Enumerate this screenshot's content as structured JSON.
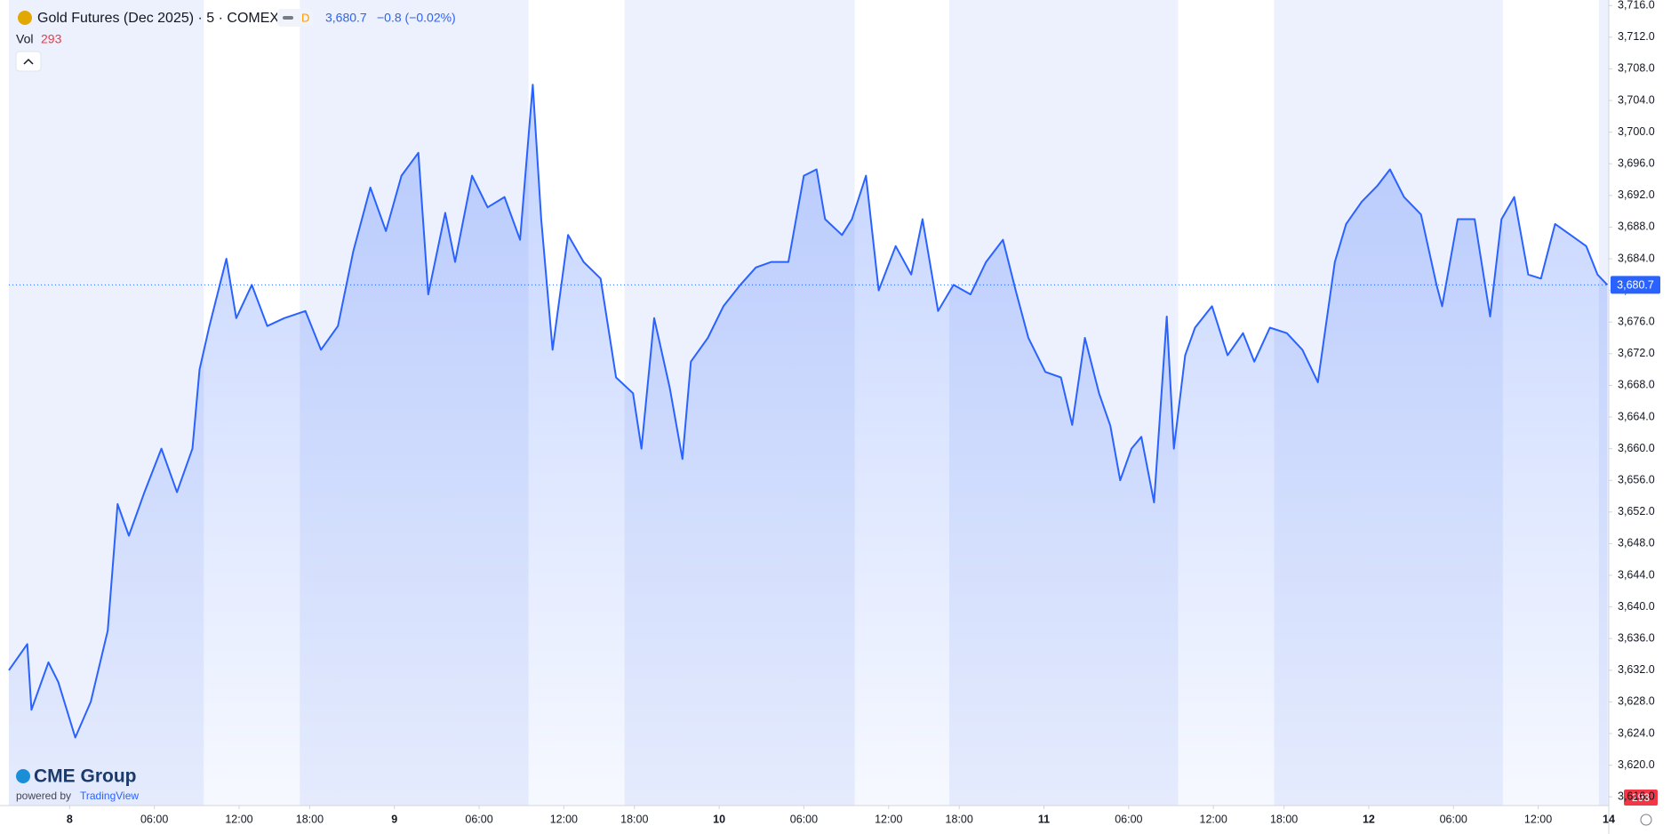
{
  "header": {
    "symbol": "Gold Futures (Dec 2025) · 5 · COMEX",
    "badge": "D",
    "change": "−0.8 (−0.02%)",
    "vol_label": "Vol",
    "vol_value": "293",
    "logo": "CME Group",
    "powered": "powered by",
    "brand": "TradingView"
  },
  "chart_data": {
    "type": "line",
    "x": [
      -4.3,
      -3.0,
      -2.7,
      -1.5,
      -0.8,
      0.4,
      1.5,
      2.7,
      3.4,
      4.2,
      5.3,
      6.5,
      7.6,
      8.7,
      9.2,
      9.9,
      11.1,
      11.8,
      12.9,
      14.0,
      15.2,
      16.7,
      17.8,
      19.0,
      20.1,
      21.3,
      22.4,
      23.5,
      24.7,
      25.4,
      26.6,
      27.3,
      28.5,
      29.6,
      30.8,
      31.9,
      32.8,
      33.4,
      34.2,
      35.3,
      36.4,
      37.6,
      38.7,
      39.9,
      40.5,
      41.4,
      42.5,
      43.4,
      44.0,
      45.2,
      46.3,
      47.5,
      48.6,
      49.7,
      50.9,
      52.0,
      52.9,
      53.5,
      54.7,
      55.4,
      56.4,
      57.3,
      58.5,
      59.6,
      60.4,
      61.5,
      62.6,
      63.8,
      64.9,
      66.1,
      67.0,
      67.9,
      69.1,
      70.2,
      71.0,
      71.9,
      72.9,
      73.7,
      74.4,
      75.2,
      75.9,
      76.8,
      77.7,
      78.2,
      79.0,
      79.7,
      80.9,
      82.0,
      83.1,
      83.9,
      85.0,
      86.2,
      87.3,
      88.4,
      89.6,
      90.4,
      91.5,
      92.6,
      93.5,
      94.5,
      95.7,
      96.8,
      97.2,
      98.3,
      99.5,
      100.6,
      101.4,
      102.3,
      103.3,
      104.2,
      105.2,
      106.3,
      107.4,
      108.2,
      108.9
    ],
    "series": [
      {
        "color": "#2962ff",
        "values": [
          3632.0,
          3635.3,
          3627.0,
          3633.0,
          3630.5,
          3623.5,
          3628.0,
          3637.0,
          3653.0,
          3649.0,
          3654.5,
          3660.0,
          3654.5,
          3660.0,
          3670.0,
          3675.5,
          3684.0,
          3676.5,
          3680.7,
          3675.5,
          3676.5,
          3677.4,
          3672.5,
          3675.5,
          3685.0,
          3693.0,
          3687.5,
          3694.5,
          3697.4,
          3679.5,
          3689.8,
          3683.6,
          3694.5,
          3690.5,
          3691.8,
          3686.4,
          3706.0,
          3689.0,
          3672.5,
          3687.0,
          3683.6,
          3681.5,
          3669.0,
          3667.0,
          3660.0,
          3676.5,
          3667.7,
          3658.7,
          3671.0,
          3674.0,
          3678.0,
          3680.7,
          3682.9,
          3683.6,
          3683.6,
          3694.5,
          3695.3,
          3689.0,
          3687.0,
          3689.0,
          3694.5,
          3680.0,
          3685.6,
          3682.0,
          3689.0,
          3677.4,
          3680.7,
          3679.5,
          3683.6,
          3686.4,
          3680.0,
          3674.0,
          3669.7,
          3669.0,
          3663.0,
          3674.0,
          3667.0,
          3662.9,
          3656.0,
          3660.0,
          3661.5,
          3653.2,
          3676.7,
          3660.0,
          3671.8,
          3675.3,
          3678.0,
          3671.8,
          3674.6,
          3671.0,
          3675.3,
          3674.6,
          3672.5,
          3668.4,
          3683.6,
          3688.4,
          3691.2,
          3693.2,
          3695.3,
          3691.8,
          3689.6,
          3680.7,
          3678.0,
          3689.0,
          3689.0,
          3676.7,
          3689.0,
          3691.8,
          3682.0,
          3681.5,
          3688.4,
          3687.0,
          3685.6,
          3682.0,
          3680.7
        ]
      }
    ],
    "last_price": 3680.7,
    "last_price_label": "3,680.7",
    "xlim": [
      -4.3,
      109.0
    ],
    "xticks": [
      {
        "value": 0,
        "label": "8"
      },
      {
        "value": 6,
        "label": "06:00"
      },
      {
        "value": 12,
        "label": "12:00"
      },
      {
        "value": 17,
        "label": "18:00"
      },
      {
        "value": 23,
        "label": "9"
      },
      {
        "value": 29,
        "label": "06:00"
      },
      {
        "value": 35,
        "label": "12:00"
      },
      {
        "value": 40,
        "label": "18:00"
      },
      {
        "value": 46,
        "label": "10"
      },
      {
        "value": 52,
        "label": "06:00"
      },
      {
        "value": 58,
        "label": "12:00"
      },
      {
        "value": 63,
        "label": "18:00"
      },
      {
        "value": 69,
        "label": "11"
      },
      {
        "value": 75,
        "label": "06:00"
      },
      {
        "value": 81,
        "label": "12:00"
      },
      {
        "value": 86,
        "label": "18:00"
      },
      {
        "value": 92,
        "label": "12"
      },
      {
        "value": 98,
        "label": "06:00"
      },
      {
        "value": 104,
        "label": "12:00"
      },
      {
        "value": 109,
        "label": "14"
      }
    ],
    "ylim": [
      3614.9,
      3716.7
    ],
    "yticks": [
      {
        "value": 3616,
        "label": "3,616.0"
      },
      {
        "value": 3620,
        "label": "3,620.0"
      },
      {
        "value": 3624,
        "label": "3,624.0"
      },
      {
        "value": 3628,
        "label": "3,628.0"
      },
      {
        "value": 3632,
        "label": "3,632.0"
      },
      {
        "value": 3636,
        "label": "3,636.0"
      },
      {
        "value": 3640,
        "label": "3,640.0"
      },
      {
        "value": 3644,
        "label": "3,644.0"
      },
      {
        "value": 3648,
        "label": "3,648.0"
      },
      {
        "value": 3652,
        "label": "3,652.0"
      },
      {
        "value": 3656,
        "label": "3,656.0"
      },
      {
        "value": 3660,
        "label": "3,660.0"
      },
      {
        "value": 3664,
        "label": "3,664.0"
      },
      {
        "value": 3668,
        "label": "3,668.0"
      },
      {
        "value": 3672,
        "label": "3,672.0"
      },
      {
        "value": 3676,
        "label": "3,676.0"
      },
      {
        "value": 3680,
        "label": "3,680.0"
      },
      {
        "value": 3684,
        "label": "3,684.0"
      },
      {
        "value": 3688,
        "label": "3,688.0"
      },
      {
        "value": 3692,
        "label": "3,692.0"
      },
      {
        "value": 3696,
        "label": "3,696.0"
      },
      {
        "value": 3700,
        "label": "3,700.0"
      },
      {
        "value": 3704,
        "label": "3,704.0"
      },
      {
        "value": 3708,
        "label": "3,708.0"
      },
      {
        "value": 3712,
        "label": "3,712.0"
      },
      {
        "value": 3716,
        "label": "3,716.0"
      }
    ],
    "grid": false
  }
}
